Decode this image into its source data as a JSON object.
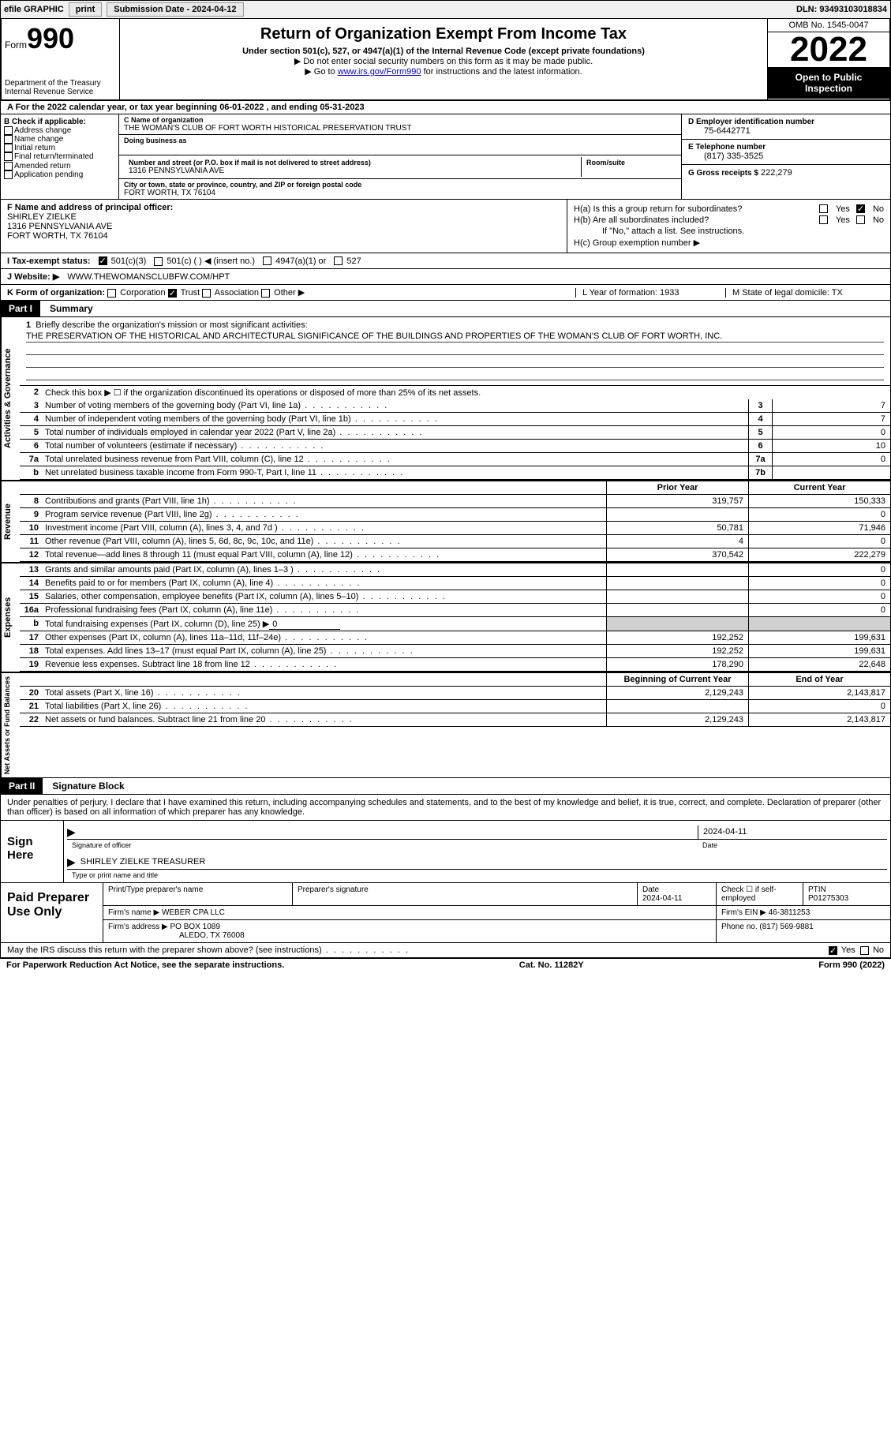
{
  "topbar": {
    "efile": "efile GRAPHIC",
    "print": "print",
    "sub_label": "Submission Date - 2024-04-12",
    "dln": "DLN: 93493103018834"
  },
  "header": {
    "form_word": "Form",
    "form_num": "990",
    "dept": "Department of the Treasury",
    "irs": "Internal Revenue Service",
    "title": "Return of Organization Exempt From Income Tax",
    "subtitle": "Under section 501(c), 527, or 4947(a)(1) of the Internal Revenue Code (except private foundations)",
    "note1": "▶ Do not enter social security numbers on this form as it may be made public.",
    "note2_pre": "▶ Go to ",
    "note2_link": "www.irs.gov/Form990",
    "note2_post": " for instructions and the latest information.",
    "omb": "OMB No. 1545-0047",
    "year": "2022",
    "open": "Open to Public Inspection"
  },
  "rowA": "A For the 2022 calendar year, or tax year beginning 06-01-2022    , and ending 05-31-2023",
  "colB": {
    "title": "B Check if applicable:",
    "opts": [
      "Address change",
      "Name change",
      "Initial return",
      "Final return/terminated",
      "Amended return",
      "Application pending"
    ]
  },
  "colC": {
    "name_lbl": "C Name of organization",
    "name": "THE WOMAN'S CLUB OF FORT WORTH HISTORICAL PRESERVATION TRUST",
    "dba_lbl": "Doing business as",
    "addr_lbl": "Number and street (or P.O. box if mail is not delivered to street address)",
    "addr": "1316 PENNSYLVANIA AVE",
    "room_lbl": "Room/suite",
    "city_lbl": "City or town, state or province, country, and ZIP or foreign postal code",
    "city": "FORT WORTH, TX  76104"
  },
  "colD": {
    "ein_lbl": "D Employer identification number",
    "ein": "75-6442771",
    "tel_lbl": "E Telephone number",
    "tel": "(817) 335-3525",
    "gross_lbl": "G Gross receipts $",
    "gross": "222,279"
  },
  "rowF": {
    "lbl": "F Name and address of principal officer:",
    "name": "SHIRLEY ZIELKE",
    "addr1": "1316 PENNSYLVANIA AVE",
    "addr2": "FORT WORTH, TX  76104"
  },
  "rowH": {
    "a": "H(a)  Is this a group return for subordinates?",
    "b": "H(b)  Are all subordinates included?",
    "b_note": "If \"No,\" attach a list. See instructions.",
    "c": "H(c)  Group exemption number ▶",
    "yes": "Yes",
    "no": "No"
  },
  "rowI": {
    "lbl": "I  Tax-exempt status:",
    "o1": "501(c)(3)",
    "o2": "501(c) (  ) ◀ (insert no.)",
    "o3": "4947(a)(1) or",
    "o4": "527"
  },
  "rowJ": {
    "lbl": "J  Website: ▶",
    "val": "WWW.THEWOMANSCLUBFW.COM/HPT"
  },
  "rowK": {
    "lbl": "K Form of organization:",
    "o1": "Corporation",
    "o2": "Trust",
    "o3": "Association",
    "o4": "Other ▶",
    "l": "L Year of formation: 1933",
    "m": "M State of legal domicile: TX"
  },
  "part1": {
    "hdr": "Part I",
    "title": "Summary",
    "side1": "Activities & Governance",
    "side2": "Revenue",
    "side3": "Expenses",
    "side4": "Net Assets or Fund Balances",
    "line1_lbl": "Briefly describe the organization's mission or most significant activities:",
    "line1_val": "THE PRESERVATION OF THE HISTORICAL AND ARCHITECTURAL SIGNIFICANCE OF THE BUILDINGS AND PROPERTIES OF THE WOMAN'S CLUB OF FORT WORTH, INC.",
    "line2": "Check this box ▶ ☐  if the organization discontinued its operations or disposed of more than 25% of its net assets.",
    "rows_small": [
      {
        "n": "3",
        "lbl": "Number of voting members of the governing body (Part VI, line 1a)",
        "box": "3",
        "val": "7"
      },
      {
        "n": "4",
        "lbl": "Number of independent voting members of the governing body (Part VI, line 1b)",
        "box": "4",
        "val": "7"
      },
      {
        "n": "5",
        "lbl": "Total number of individuals employed in calendar year 2022 (Part V, line 2a)",
        "box": "5",
        "val": "0"
      },
      {
        "n": "6",
        "lbl": "Total number of volunteers (estimate if necessary)",
        "box": "6",
        "val": "10"
      },
      {
        "n": "7a",
        "lbl": "Total unrelated business revenue from Part VIII, column (C), line 12",
        "box": "7a",
        "val": "0"
      },
      {
        "n": "b",
        "lbl": "Net unrelated business taxable income from Form 990-T, Part I, line 11",
        "box": "7b",
        "val": ""
      }
    ],
    "col_prior": "Prior Year",
    "col_curr": "Current Year",
    "rows_rev": [
      {
        "n": "8",
        "lbl": "Contributions and grants (Part VIII, line 1h)",
        "p": "319,757",
        "c": "150,333"
      },
      {
        "n": "9",
        "lbl": "Program service revenue (Part VIII, line 2g)",
        "p": "",
        "c": "0"
      },
      {
        "n": "10",
        "lbl": "Investment income (Part VIII, column (A), lines 3, 4, and 7d )",
        "p": "50,781",
        "c": "71,946"
      },
      {
        "n": "11",
        "lbl": "Other revenue (Part VIII, column (A), lines 5, 6d, 8c, 9c, 10c, and 11e)",
        "p": "4",
        "c": "0"
      },
      {
        "n": "12",
        "lbl": "Total revenue—add lines 8 through 11 (must equal Part VIII, column (A), line 12)",
        "p": "370,542",
        "c": "222,279"
      }
    ],
    "rows_exp": [
      {
        "n": "13",
        "lbl": "Grants and similar amounts paid (Part IX, column (A), lines 1–3 )",
        "p": "",
        "c": "0"
      },
      {
        "n": "14",
        "lbl": "Benefits paid to or for members (Part IX, column (A), line 4)",
        "p": "",
        "c": "0"
      },
      {
        "n": "15",
        "lbl": "Salaries, other compensation, employee benefits (Part IX, column (A), lines 5–10)",
        "p": "",
        "c": "0"
      },
      {
        "n": "16a",
        "lbl": "Professional fundraising fees (Part IX, column (A), line 11e)",
        "p": "",
        "c": "0"
      }
    ],
    "line16b_lbl": "Total fundraising expenses (Part IX, column (D), line 25) ▶",
    "line16b_val": "0",
    "rows_exp2": [
      {
        "n": "17",
        "lbl": "Other expenses (Part IX, column (A), lines 11a–11d, 11f–24e)",
        "p": "192,252",
        "c": "199,631"
      },
      {
        "n": "18",
        "lbl": "Total expenses. Add lines 13–17 (must equal Part IX, column (A), line 25)",
        "p": "192,252",
        "c": "199,631"
      },
      {
        "n": "19",
        "lbl": "Revenue less expenses. Subtract line 18 from line 12",
        "p": "178,290",
        "c": "22,648"
      }
    ],
    "col_begin": "Beginning of Current Year",
    "col_end": "End of Year",
    "rows_net": [
      {
        "n": "20",
        "lbl": "Total assets (Part X, line 16)",
        "p": "2,129,243",
        "c": "2,143,817"
      },
      {
        "n": "21",
        "lbl": "Total liabilities (Part X, line 26)",
        "p": "",
        "c": "0"
      },
      {
        "n": "22",
        "lbl": "Net assets or fund balances. Subtract line 21 from line 20",
        "p": "2,129,243",
        "c": "2,143,817"
      }
    ]
  },
  "part2": {
    "hdr": "Part II",
    "title": "Signature Block",
    "decl": "Under penalties of perjury, I declare that I have examined this return, including accompanying schedules and statements, and to the best of my knowledge and belief, it is true, correct, and complete. Declaration of preparer (other than officer) is based on all information of which preparer has any knowledge.",
    "sign_here": "Sign Here",
    "sig_officer": "Signature of officer",
    "sig_date": "2024-04-11",
    "sig_name": "SHIRLEY ZIELKE  TREASURER",
    "sig_name_lbl": "Type or print name and title",
    "paid": "Paid Preparer Use Only",
    "pp_name_lbl": "Print/Type preparer's name",
    "pp_sig_lbl": "Preparer's signature",
    "pp_date_lbl": "Date",
    "pp_date": "2024-04-11",
    "pp_check_lbl": "Check ☐ if self-employed",
    "pp_ptin_lbl": "PTIN",
    "pp_ptin": "P01275303",
    "firm_name_lbl": "Firm's name    ▶",
    "firm_name": "WEBER CPA LLC",
    "firm_ein_lbl": "Firm's EIN ▶",
    "firm_ein": "46-3811253",
    "firm_addr_lbl": "Firm's address ▶",
    "firm_addr1": "PO BOX 1089",
    "firm_addr2": "ALEDO, TX  76008",
    "phone_lbl": "Phone no.",
    "phone": "(817) 569-9881",
    "discuss": "May the IRS discuss this return with the preparer shown above? (see instructions)",
    "yes": "Yes",
    "no": "No"
  },
  "footer": {
    "l": "For Paperwork Reduction Act Notice, see the separate instructions.",
    "m": "Cat. No. 11282Y",
    "r": "Form 990 (2022)"
  }
}
